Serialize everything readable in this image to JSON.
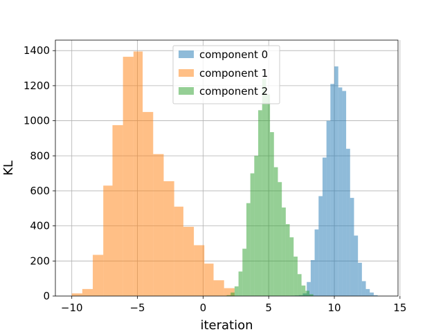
{
  "chart_data": {
    "type": "histogram",
    "title": "",
    "xlabel": "iteration",
    "ylabel": "KL",
    "xlim": [
      -11.25,
      14.85
    ],
    "ylim": [
      0,
      1460
    ],
    "xticks": [
      -10,
      -5,
      0,
      5,
      10,
      15
    ],
    "xtick_labels": [
      "−10",
      "−5",
      "0",
      "5",
      "10",
      "15"
    ],
    "yticks": [
      0,
      200,
      400,
      600,
      800,
      1000,
      1200,
      1400
    ],
    "ytick_labels": [
      "0",
      "200",
      "400",
      "600",
      "800",
      "1000",
      "1200",
      "1400"
    ],
    "grid": true,
    "legend_position": "top-center",
    "series": [
      {
        "name": "component 0",
        "color": "#1f77b4",
        "opacity": 0.5,
        "bin_edges": [
          6.7,
          7.0,
          7.3,
          7.6,
          7.9,
          8.2,
          8.5,
          8.8,
          9.1,
          9.4,
          9.7,
          10.0,
          10.3,
          10.6,
          10.9,
          11.2,
          11.5,
          11.8,
          12.1,
          12.4,
          12.7,
          13.0,
          13.3
        ],
        "counts": [
          2,
          3,
          5,
          15,
          80,
          205,
          380,
          570,
          790,
          1000,
          1210,
          1310,
          1190,
          1170,
          840,
          560,
          345,
          190,
          85,
          40,
          20,
          5
        ]
      },
      {
        "name": "component 1",
        "color": "#ff7f0e",
        "opacity": 0.5,
        "bin_edges": [
          -10.0,
          -9.2,
          -8.4,
          -7.6,
          -6.9,
          -6.1,
          -5.3,
          -4.6,
          -3.8,
          -3.0,
          -2.2,
          -1.5,
          -0.7,
          0.1,
          0.8,
          1.6,
          2.4
        ],
        "counts": [
          15,
          40,
          235,
          630,
          975,
          1365,
          1395,
          1050,
          810,
          655,
          510,
          395,
          290,
          185,
          90,
          45
        ]
      },
      {
        "name": "component 2",
        "color": "#2ca02c",
        "opacity": 0.5,
        "bin_edges": [
          1.8,
          2.1,
          2.4,
          2.7,
          3.0,
          3.3,
          3.6,
          3.9,
          4.2,
          4.5,
          4.8,
          5.1,
          5.4,
          5.7,
          6.0,
          6.3,
          6.6,
          6.9,
          7.2,
          7.5,
          7.8,
          8.1,
          8.4
        ],
        "counts": [
          5,
          20,
          55,
          140,
          270,
          530,
          700,
          800,
          1060,
          1240,
          1150,
          935,
          735,
          650,
          505,
          410,
          335,
          225,
          125,
          60,
          30,
          10
        ]
      }
    ]
  }
}
